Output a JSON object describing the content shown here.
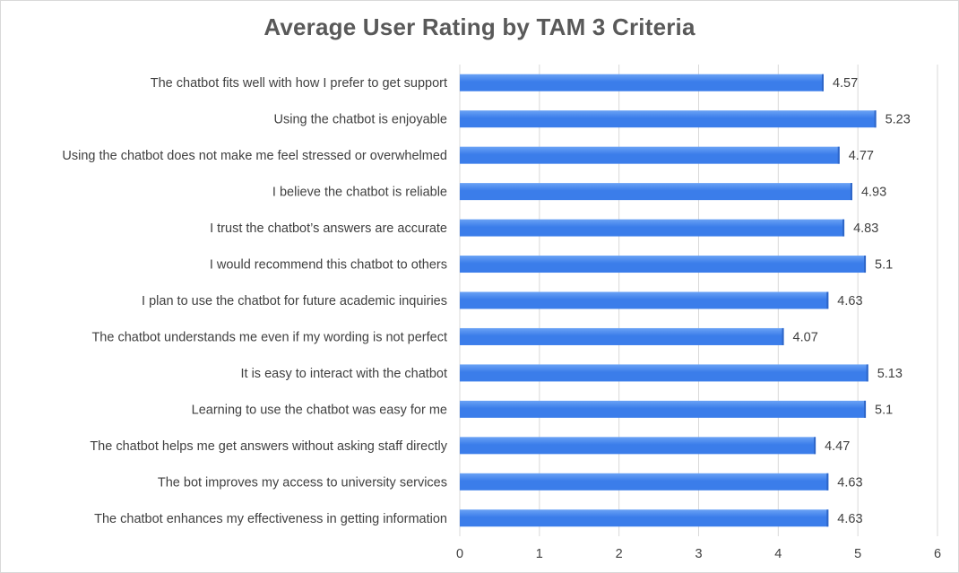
{
  "chart_data": {
    "type": "bar",
    "orientation": "horizontal",
    "title": "Average User Rating by TAM 3 Criteria",
    "xlabel": "",
    "ylabel": "",
    "xlim": [
      0,
      6
    ],
    "x_ticks": [
      "0",
      "1",
      "2",
      "3",
      "4",
      "5",
      "6"
    ],
    "grid": true,
    "bar_color": "#3b7dea",
    "bar_color_light": "#6aa2f5",
    "categories": [
      "The chatbot fits well with how I prefer to get support",
      "Using the chatbot is enjoyable",
      "Using the chatbot does not make me feel stressed or overwhelmed",
      "I believe the chatbot is reliable",
      "I trust the chatbot’s answers are accurate",
      "I would recommend this chatbot to others",
      "I plan to use the chatbot for future academic inquiries",
      "The chatbot understands me even if my wording is not perfect",
      "It is easy to interact with the chatbot",
      "Learning to use the chatbot was easy for me",
      "The chatbot helps me get answers without asking staff directly",
      "The bot improves my access to university services",
      "The chatbot enhances my effectiveness in getting information"
    ],
    "values": [
      4.57,
      5.23,
      4.77,
      4.93,
      4.83,
      5.1,
      4.63,
      4.07,
      5.13,
      5.1,
      4.47,
      4.63,
      4.63
    ],
    "value_labels": [
      "4.57",
      "5.23",
      "4.77",
      "4.93",
      "4.83",
      "5.1",
      "4.63",
      "4.07",
      "5.13",
      "5.1",
      "4.47",
      "4.63",
      "4.63"
    ]
  }
}
